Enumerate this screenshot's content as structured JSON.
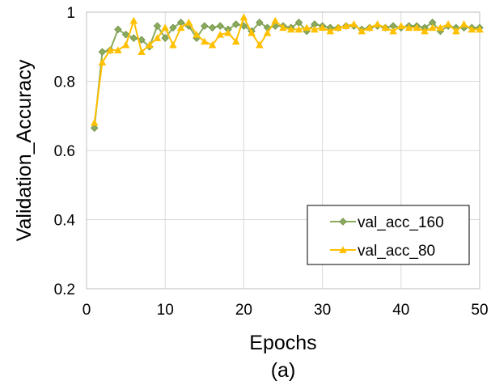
{
  "chart_data": {
    "type": "line",
    "xlabel": "Epochs",
    "ylabel": "Validation_Accuracy",
    "caption": "(a)",
    "xlim": [
      0,
      50
    ],
    "ylim": [
      0.2,
      1.0
    ],
    "xticks": [
      0,
      10,
      20,
      30,
      40,
      50
    ],
    "xtick_labels": [
      "0",
      "10",
      "20",
      "30",
      "40",
      "50"
    ],
    "yticks": [
      0.2,
      0.4,
      0.6,
      0.8,
      1.0
    ],
    "ytick_labels": [
      "0.2",
      "0.4",
      "0.6",
      "0.8",
      "1"
    ],
    "grid": true,
    "legend_position": "bottom-right",
    "x": [
      1,
      2,
      3,
      4,
      5,
      6,
      7,
      8,
      9,
      10,
      11,
      12,
      13,
      14,
      15,
      16,
      17,
      18,
      19,
      20,
      21,
      22,
      23,
      24,
      25,
      26,
      27,
      28,
      29,
      30,
      31,
      32,
      33,
      34,
      35,
      36,
      37,
      38,
      39,
      40,
      41,
      42,
      43,
      44,
      45,
      46,
      47,
      48,
      49,
      50
    ],
    "series": [
      {
        "name": "val_acc_160",
        "color": "#8aab5e",
        "marker": "diamond",
        "values": [
          0.665,
          0.885,
          0.89,
          0.95,
          0.935,
          0.925,
          0.92,
          0.9,
          0.96,
          0.925,
          0.955,
          0.97,
          0.96,
          0.925,
          0.96,
          0.955,
          0.96,
          0.95,
          0.965,
          0.96,
          0.945,
          0.97,
          0.955,
          0.96,
          0.96,
          0.955,
          0.97,
          0.945,
          0.965,
          0.96,
          0.955,
          0.955,
          0.96,
          0.96,
          0.95,
          0.955,
          0.96,
          0.955,
          0.96,
          0.955,
          0.96,
          0.96,
          0.955,
          0.97,
          0.945,
          0.96,
          0.955,
          0.955,
          0.955,
          0.955
        ]
      },
      {
        "name": "val_acc_80",
        "color": "#ffc000",
        "marker": "triangle",
        "values": [
          0.68,
          0.855,
          0.89,
          0.89,
          0.905,
          0.975,
          0.885,
          0.905,
          0.925,
          0.955,
          0.905,
          0.955,
          0.97,
          0.935,
          0.915,
          0.905,
          0.935,
          0.94,
          0.915,
          0.985,
          0.94,
          0.905,
          0.94,
          0.975,
          0.955,
          0.95,
          0.95,
          0.955,
          0.95,
          0.955,
          0.945,
          0.955,
          0.96,
          0.965,
          0.945,
          0.955,
          0.965,
          0.955,
          0.945,
          0.96,
          0.955,
          0.955,
          0.945,
          0.955,
          0.955,
          0.965,
          0.945,
          0.965,
          0.95,
          0.95
        ]
      }
    ]
  }
}
